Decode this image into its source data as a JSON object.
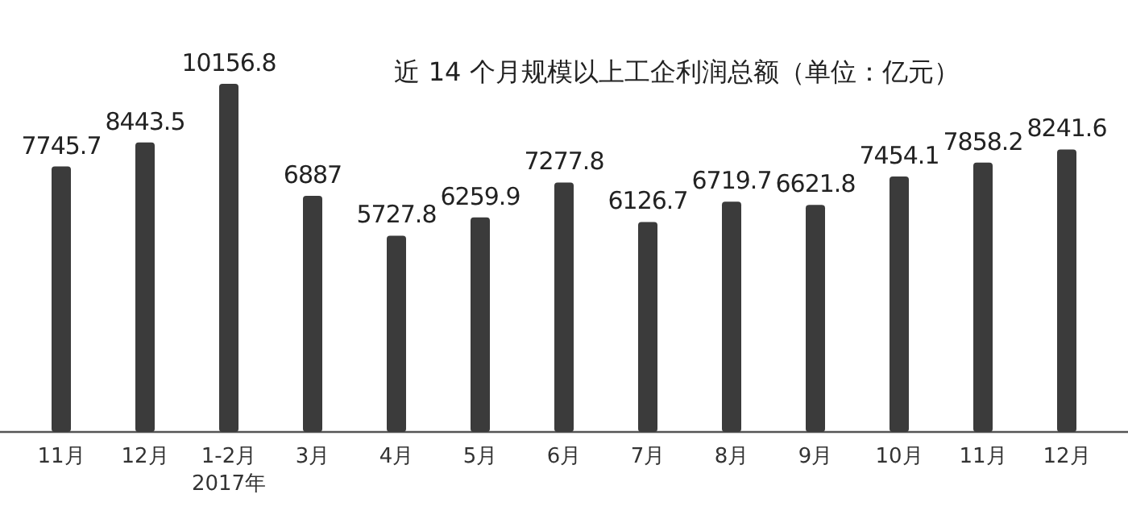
{
  "chart_data": {
    "type": "bar",
    "title": "近 14 个月规模以上工企利润总额（单位：亿元）",
    "categories": [
      "11月",
      "12月",
      "1-2月\n2017年",
      "3月",
      "4月",
      "5月",
      "6月",
      "7月",
      "8月",
      "9月",
      "10月",
      "11月",
      "12月"
    ],
    "values": [
      7745.7,
      8443.5,
      10156.8,
      6887,
      5727.8,
      6259.9,
      7277.8,
      6126.7,
      6719.7,
      6621.8,
      7454.1,
      7858.2,
      8241.6
    ],
    "color": "#3b3b3b",
    "data_labels": true,
    "tick_labels": "x"
  }
}
